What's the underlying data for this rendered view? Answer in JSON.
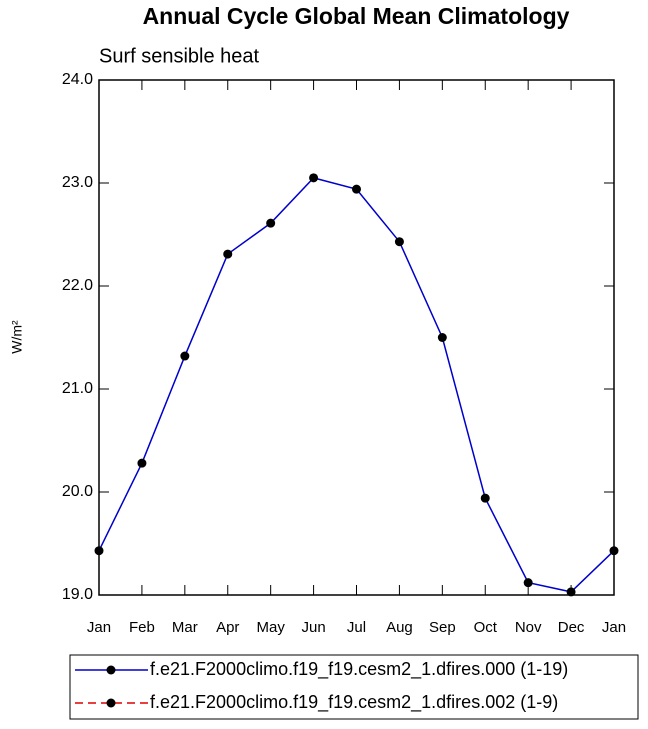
{
  "chart_data": {
    "type": "line",
    "title": "Annual Cycle Global Mean Climatology",
    "subtitle": "Surf sensible heat",
    "y_label": "W/m²",
    "categories": [
      "Jan",
      "Feb",
      "Mar",
      "Apr",
      "May",
      "Jun",
      "Jul",
      "Aug",
      "Sep",
      "Oct",
      "Nov",
      "Dec",
      "Jan"
    ],
    "series": [
      {
        "name": "f.e21.F2000climo.f19_f19.cesm2_1.dfires.000 (1-19)",
        "color": "#0000cc",
        "line_style": "solid",
        "values": [
          19.43,
          20.28,
          21.32,
          22.31,
          22.61,
          23.05,
          22.94,
          22.43,
          21.5,
          19.94,
          19.12,
          19.03,
          19.43
        ]
      },
      {
        "name": "f.e21.F2000climo.f19_f19.cesm2_1.dfires.002 (1-9)",
        "color": "#e00000",
        "line_style": "dashed",
        "values": [
          null,
          null,
          null,
          null,
          null,
          null,
          null,
          null,
          null,
          null,
          null,
          null,
          null
        ]
      }
    ],
    "ylim": [
      19,
      24
    ],
    "yticks": [
      {
        "value": 19,
        "label": "19.0"
      },
      {
        "value": 20,
        "label": "20.0"
      },
      {
        "value": 21,
        "label": "21.0"
      },
      {
        "value": 22,
        "label": "22.0"
      },
      {
        "value": 23,
        "label": "23.0"
      },
      {
        "value": 24,
        "label": "24.0"
      }
    ],
    "grid": false
  }
}
